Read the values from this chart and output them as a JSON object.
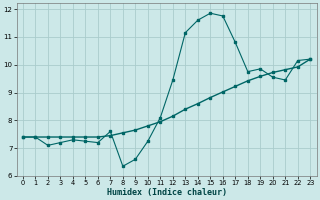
{
  "xlabel": "Humidex (Indice chaleur)",
  "bg_color": "#cce8e8",
  "grid_color": "#aacccc",
  "line_color": "#006666",
  "xlim": [
    -0.5,
    23.5
  ],
  "ylim": [
    6,
    12.2
  ],
  "xticks": [
    0,
    1,
    2,
    3,
    4,
    5,
    6,
    7,
    8,
    9,
    10,
    11,
    12,
    13,
    14,
    15,
    16,
    17,
    18,
    19,
    20,
    21,
    22,
    23
  ],
  "yticks": [
    6,
    7,
    8,
    9,
    10,
    11,
    12
  ],
  "line1_x": [
    0,
    1,
    2,
    3,
    4,
    5,
    6,
    7,
    8,
    9,
    10,
    11,
    12,
    13,
    14,
    15,
    16,
    17,
    18,
    19,
    20,
    21,
    22,
    23
  ],
  "line1_y": [
    7.4,
    7.4,
    7.1,
    7.2,
    7.3,
    7.25,
    7.2,
    7.6,
    6.35,
    6.6,
    7.25,
    8.1,
    9.45,
    11.15,
    11.6,
    11.85,
    11.75,
    10.8,
    9.75,
    9.85,
    9.55,
    9.45,
    10.15,
    10.2
  ],
  "line2_x": [
    0,
    1,
    2,
    3,
    4,
    5,
    6,
    7,
    8,
    9,
    10,
    11,
    12,
    13,
    14,
    15,
    16,
    17,
    18,
    19,
    20,
    21,
    22,
    23
  ],
  "line2_y": [
    7.4,
    7.4,
    7.4,
    7.4,
    7.4,
    7.4,
    7.4,
    7.45,
    7.55,
    7.65,
    7.8,
    7.95,
    8.15,
    8.4,
    8.6,
    8.82,
    9.02,
    9.22,
    9.42,
    9.58,
    9.72,
    9.82,
    9.92,
    10.2
  ]
}
